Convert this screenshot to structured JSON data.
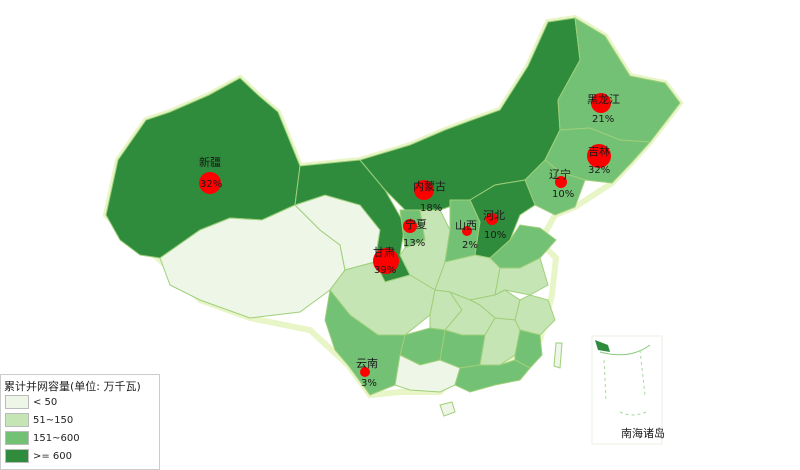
{
  "legend": {
    "title": "累计并网容量(单位: 万千瓦)",
    "items": [
      {
        "label": "< 50",
        "color": "#eef6e8"
      },
      {
        "label": "51~150",
        "color": "#c6e5b5"
      },
      {
        "label": "151~600",
        "color": "#73c174"
      },
      {
        "label": ">= 600",
        "color": "#2f8c3d"
      }
    ]
  },
  "inset_label": "南海诸岛",
  "provinces": [
    {
      "name": "新疆",
      "pct": "32%"
    },
    {
      "name": "内蒙古",
      "pct": "18%"
    },
    {
      "name": "黑龙江",
      "pct": "21%"
    },
    {
      "name": "吉林",
      "pct": "32%"
    },
    {
      "name": "辽宁",
      "pct": "10%"
    },
    {
      "name": "宁夏",
      "pct": "13%"
    },
    {
      "name": "山西",
      "pct": "2%"
    },
    {
      "name": "河北",
      "pct": "10%"
    },
    {
      "name": "甘肃",
      "pct": "39%"
    },
    {
      "name": "云南",
      "pct": "3%"
    }
  ]
}
